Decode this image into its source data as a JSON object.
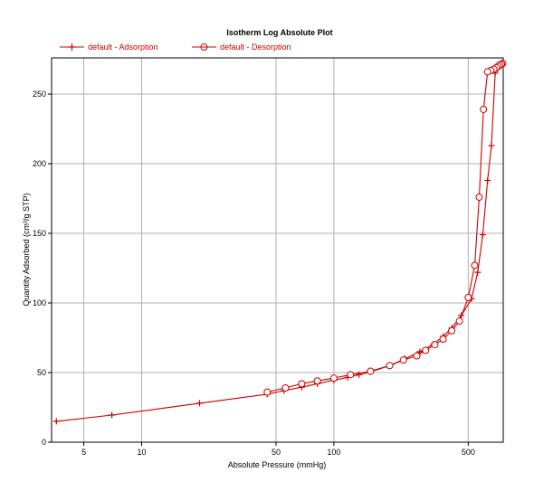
{
  "chart_data": {
    "type": "line",
    "title": "Isotherm Log Absolute Plot",
    "xlabel": "Absolute Pressure (mmHg)",
    "ylabel": "Quantity Adsorbed (cm³/g STP)",
    "x_scale": "log",
    "xlim": [
      3.4,
      760
    ],
    "ylim": [
      0,
      276
    ],
    "x_ticks": [
      5,
      10,
      50,
      100,
      500
    ],
    "y_ticks": [
      0,
      50,
      100,
      150,
      200,
      250
    ],
    "grid": true,
    "legend_position": "top-left",
    "colors": {
      "series": "#cc0000",
      "grid": "#b0b0b0",
      "axis": "#000000"
    },
    "series": [
      {
        "name": "default - Adsorption",
        "marker": "plus",
        "x": [
          3.6,
          7,
          20,
          45,
          55,
          68,
          82,
          100,
          118,
          135,
          155,
          195,
          235,
          280,
          330,
          370,
          410,
          460,
          520,
          560,
          595,
          630,
          660,
          690,
          710,
          730,
          745,
          755
        ],
        "y": [
          15,
          19.5,
          28,
          34.5,
          37,
          39.5,
          42,
          44.5,
          46.5,
          48.5,
          50.5,
          55,
          60,
          65,
          70.5,
          76,
          82,
          91,
          103,
          122,
          149,
          188,
          213,
          265,
          268,
          270,
          271,
          272
        ]
      },
      {
        "name": "default - Desorption",
        "marker": "circle",
        "x": [
          756,
          745,
          730,
          715,
          700,
          680,
          655,
          630,
          600,
          570,
          540,
          500,
          450,
          410,
          370,
          335,
          300,
          270,
          230,
          195,
          155,
          122,
          100,
          82,
          68,
          56,
          45
        ],
        "y": [
          272,
          271.5,
          271,
          270,
          269,
          268,
          267,
          266,
          239,
          176,
          127,
          104,
          87,
          80,
          74,
          70,
          66,
          62,
          59,
          55,
          51,
          48.5,
          46,
          44,
          42,
          39,
          36
        ]
      }
    ]
  }
}
